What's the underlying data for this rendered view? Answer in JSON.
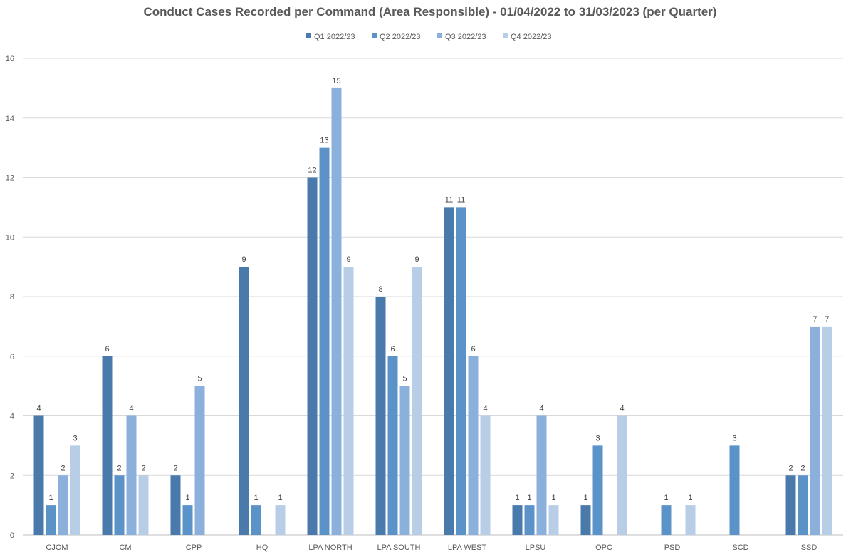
{
  "chart_data": {
    "type": "bar",
    "title": "Conduct Cases Recorded per Command (Area Responsible) - 01/04/2022 to 31/03/2023 (per Quarter)",
    "xlabel": "",
    "ylabel": "",
    "ylim": [
      0,
      16
    ],
    "yticks": [
      0,
      2,
      4,
      6,
      8,
      10,
      12,
      14,
      16
    ],
    "grid": true,
    "legend_position": "top",
    "categories": [
      "CJOM",
      "CM",
      "CPP",
      "HQ",
      "LPA NORTH",
      "LPA SOUTH",
      "LPA WEST",
      "LPSU",
      "OPC",
      "PSD",
      "SCD",
      "SSD"
    ],
    "series": [
      {
        "name": "Q1 2022/23",
        "color": "#4a7aab",
        "values": [
          4,
          6,
          2,
          9,
          12,
          8,
          11,
          1,
          1,
          null,
          null,
          2
        ]
      },
      {
        "name": "Q2 2022/23",
        "color": "#5b93c9",
        "values": [
          1,
          2,
          1,
          1,
          13,
          6,
          11,
          1,
          3,
          1,
          3,
          2
        ]
      },
      {
        "name": "Q3 2022/23",
        "color": "#8bb0dc",
        "values": [
          2,
          4,
          5,
          null,
          15,
          5,
          6,
          4,
          null,
          null,
          null,
          7
        ]
      },
      {
        "name": "Q4 2022/23",
        "color": "#b8cde6",
        "values": [
          3,
          2,
          null,
          1,
          9,
          9,
          4,
          1,
          4,
          1,
          null,
          7
        ]
      }
    ]
  }
}
